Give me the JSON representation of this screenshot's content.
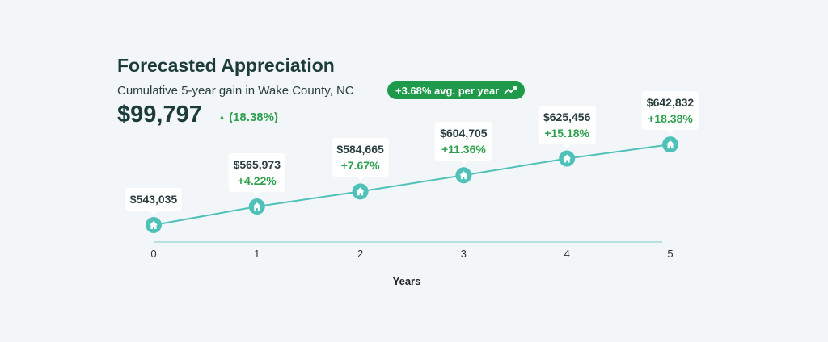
{
  "header": {
    "title": "Forecasted Appreciation",
    "subtitle": "Cumulative 5-year gain in Wake County, NC",
    "badge": "+3.68% avg. per year",
    "badge_icon": "trending-up-icon",
    "total": "$99,797",
    "total_change": "(18.38%)",
    "total_change_icon": "triangle-up-icon"
  },
  "colors": {
    "line": "#4fc1b9",
    "positive": "#2ea04f",
    "badge": "#1f9a4a"
  },
  "chart_data": {
    "type": "line",
    "xlabel": "Years",
    "ylabel": "",
    "x": [
      0,
      1,
      2,
      3,
      4,
      5
    ],
    "values": [
      543035,
      565973,
      584665,
      604705,
      625456,
      642832
    ],
    "value_labels": [
      "$543,035",
      "$565,973",
      "$584,665",
      "$604,705",
      "$625,456",
      "$642,832"
    ],
    "change_labels": [
      "",
      "+4.22%",
      "+7.67%",
      "+11.36%",
      "+15.18%",
      "+18.38%"
    ],
    "tick_labels": [
      "0",
      "1",
      "2",
      "3",
      "4",
      "5"
    ],
    "ylim": [
      522000,
      650000
    ],
    "grid": false,
    "marker_icon": "house-icon"
  }
}
